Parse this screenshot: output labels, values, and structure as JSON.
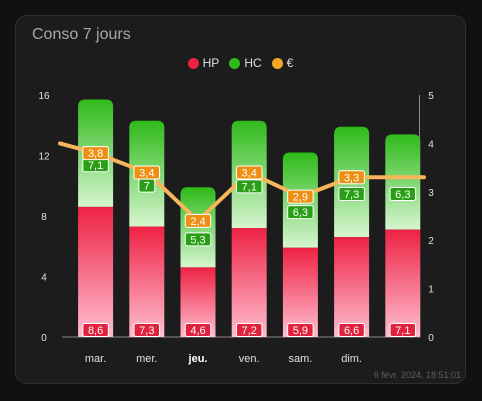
{
  "card": {
    "title": "Conso 7 jours",
    "timestamp": "6 févr. 2024, 18:51:01"
  },
  "colors": {
    "hp": "#ee2244",
    "hc": "#2fba1a",
    "euro": "#f5a623"
  },
  "chart_data": {
    "type": "bar",
    "title": "",
    "stacked": true,
    "categories": [
      "mar.",
      "mer.",
      "jeu.",
      "ven.",
      "sam.",
      "dim.",
      ""
    ],
    "highlight_category": "jeu.",
    "series": [
      {
        "name": "HP",
        "axis": "left",
        "values": [
          8.6,
          7.3,
          4.6,
          7.2,
          5.9,
          6.6,
          7.1
        ]
      },
      {
        "name": "HC",
        "axis": "left",
        "values": [
          7.1,
          7,
          5.3,
          7.1,
          6.3,
          7.3,
          6.3
        ]
      },
      {
        "name": "€",
        "axis": "right",
        "type": "line",
        "values": [
          3.8,
          3.4,
          2.4,
          3.4,
          2.9,
          3.3,
          3.3
        ],
        "values_extended": {
          "start": 4.0,
          "end": 3.3
        }
      }
    ],
    "y_left": {
      "min": 0,
      "max": 16,
      "ticks": [
        0,
        4,
        8,
        12,
        16
      ]
    },
    "y_right": {
      "min": 0,
      "max": 5,
      "ticks": [
        0,
        1,
        2,
        3,
        4,
        5
      ]
    },
    "label_format": "decimal-comma",
    "labels": {
      "hp": [
        "8,6",
        "7,3",
        "4,6",
        "7,2",
        "5,9",
        "6,6",
        "7,1"
      ],
      "hc": [
        "7,1",
        "7",
        "5,3",
        "7,1",
        "6,3",
        "7,3",
        "6,3"
      ],
      "euro": [
        "3,8",
        "3,4",
        "2,4",
        "3,4",
        "2,9",
        "3,3",
        ""
      ]
    },
    "legend": "top-center"
  }
}
